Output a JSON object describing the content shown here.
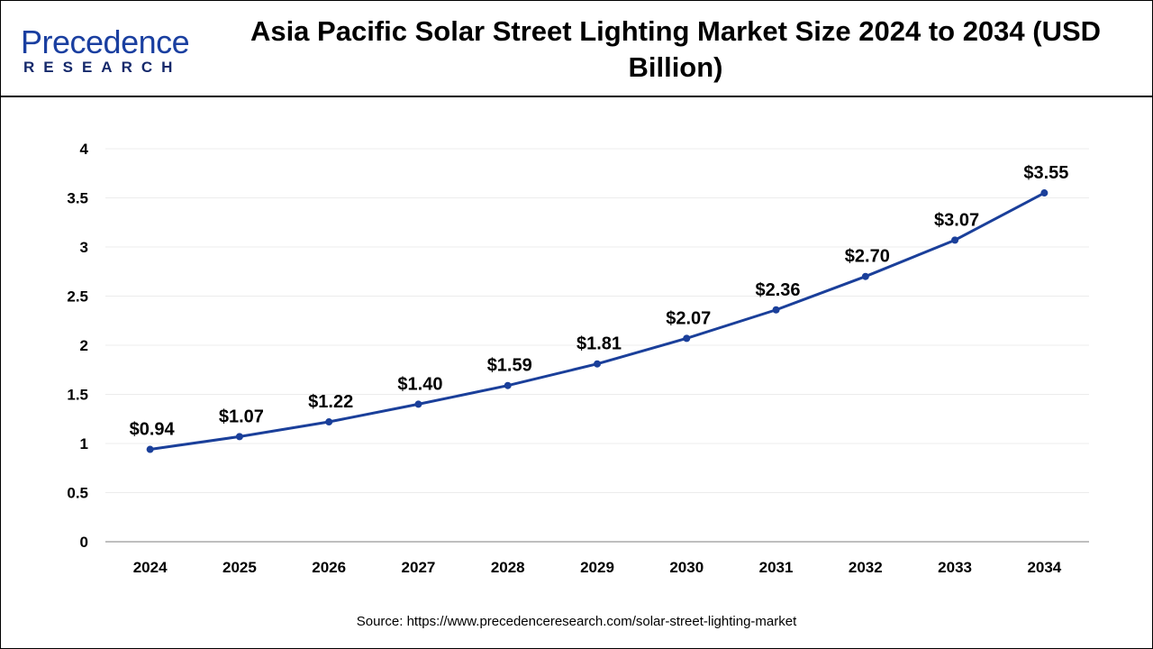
{
  "logo": {
    "line1": "Precedence",
    "line2": "RESEARCH"
  },
  "title": "Asia Pacific Solar Street Lighting Market Size 2024 to 2034 (USD Billion)",
  "source": "Source: https://www.precedenceresearch.com/solar-street-lighting-market",
  "chart_data": {
    "type": "line",
    "title": "Asia Pacific Solar Street Lighting Market Size 2024 to 2034 (USD Billion)",
    "categories": [
      "2024",
      "2025",
      "2026",
      "2027",
      "2028",
      "2029",
      "2030",
      "2031",
      "2032",
      "2033",
      "2034"
    ],
    "values": [
      0.94,
      1.07,
      1.22,
      1.4,
      1.59,
      1.81,
      2.07,
      2.36,
      2.7,
      3.07,
      3.55
    ],
    "data_labels": [
      "$0.94",
      "$1.07",
      "$1.22",
      "$1.40",
      "$1.59",
      "$1.81",
      "$2.07",
      "$2.36",
      "$2.70",
      "$3.07",
      "$3.55"
    ],
    "yticks": [
      "0",
      "0.5",
      "1",
      "1.5",
      "2",
      "2.5",
      "3",
      "3.5",
      "4"
    ],
    "ylim": [
      0,
      4
    ],
    "grid": true,
    "legend": "none",
    "line_color": "#1a3f9a"
  }
}
